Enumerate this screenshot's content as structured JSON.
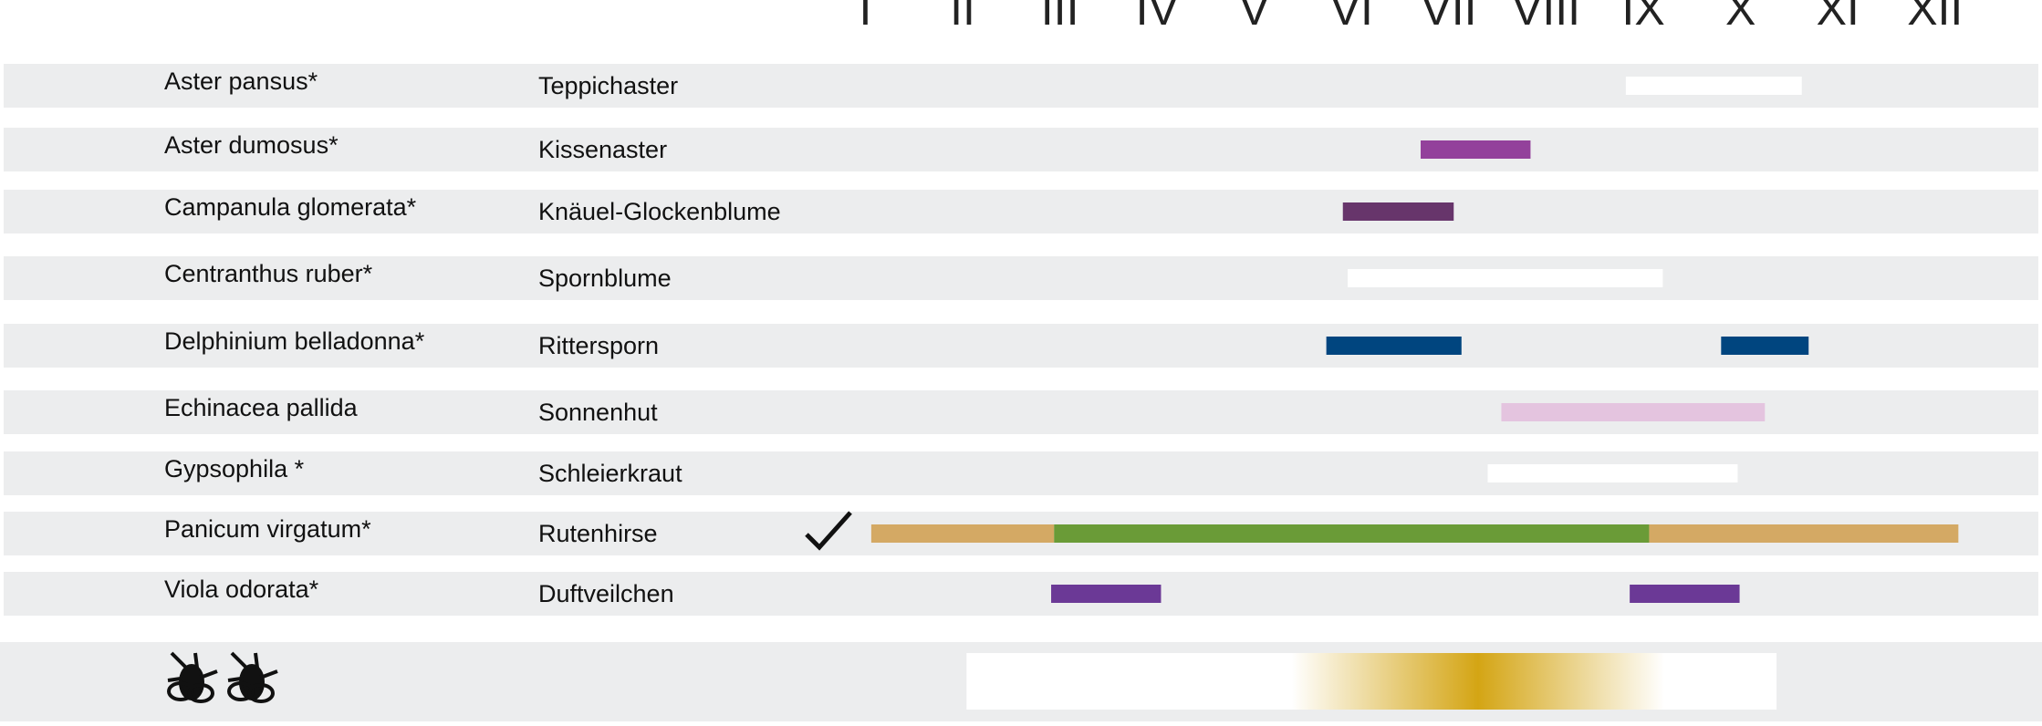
{
  "chart_data": {
    "type": "gantt",
    "xticks": [
      {
        "value": 1,
        "label": "I"
      },
      {
        "value": 2,
        "label": "II"
      },
      {
        "value": 3,
        "label": "III"
      },
      {
        "value": 4,
        "label": "IV"
      },
      {
        "value": 5,
        "label": "V"
      },
      {
        "value": 6,
        "label": "VI"
      },
      {
        "value": 7,
        "label": "VII"
      },
      {
        "value": 8,
        "label": "VIII"
      },
      {
        "value": 9,
        "label": "IX"
      },
      {
        "value": 10,
        "label": "X"
      },
      {
        "value": 11,
        "label": "XI"
      },
      {
        "value": 12,
        "label": "XII"
      }
    ],
    "xlim": [
      -7.9,
      13.1
    ],
    "rows": [
      {
        "latin": "Aster pansus*",
        "german": "Teppichaster",
        "bars": [
          {
            "start": 8.82,
            "end": 10.63,
            "color": "#ffffff"
          }
        ]
      },
      {
        "latin": "Aster dumosus*",
        "german": "Kissenaster",
        "bars": [
          {
            "start": 6.71,
            "end": 7.84,
            "color": "#93419b"
          }
        ]
      },
      {
        "latin": "Campanula glomerata*",
        "german": "Knäuel-Glockenblume",
        "bars": [
          {
            "start": 5.91,
            "end": 7.05,
            "color": "#67356b"
          }
        ]
      },
      {
        "latin": "Centranthus ruber*",
        "german": "Spornblume",
        "bars": [
          {
            "start": 5.96,
            "end": 9.2,
            "color": "#ffffff"
          }
        ]
      },
      {
        "latin": "Delphinium belladonna*",
        "german": "Rittersporn",
        "bars": [
          {
            "start": 5.74,
            "end": 7.13,
            "color": "#00457f"
          },
          {
            "start": 9.8,
            "end": 10.7,
            "color": "#00457f"
          }
        ]
      },
      {
        "latin": "Echinacea pallida",
        "german": "Sonnenhut",
        "bars": [
          {
            "start": 7.54,
            "end": 10.25,
            "color": "#e4c4df"
          }
        ]
      },
      {
        "latin": "Gypsophila *",
        "german": "Schleierkraut",
        "bars": [
          {
            "start": 7.4,
            "end": 9.97,
            "color": "#ffffff"
          }
        ]
      },
      {
        "latin": "Panicum virgatum*",
        "german": "Rutenhirse",
        "bars": [
          {
            "start": 1.06,
            "end": 2.94,
            "color": "#d4a964"
          },
          {
            "start": 2.94,
            "end": 9.06,
            "color": "#6a9b37"
          },
          {
            "start": 9.06,
            "end": 12.24,
            "color": "#d4a964"
          }
        ]
      },
      {
        "latin": "Viola odorata*",
        "german": "Duftveilchen",
        "bars": [
          {
            "start": 2.91,
            "end": 4.04,
            "color": "#6b3996"
          },
          {
            "start": 8.86,
            "end": 9.99,
            "color": "#6b3996"
          }
        ]
      }
    ],
    "bee_bar": {
      "start": 2.04,
      "end": 10.37,
      "peak": 7.3,
      "color": "#d4a514"
    }
  }
}
